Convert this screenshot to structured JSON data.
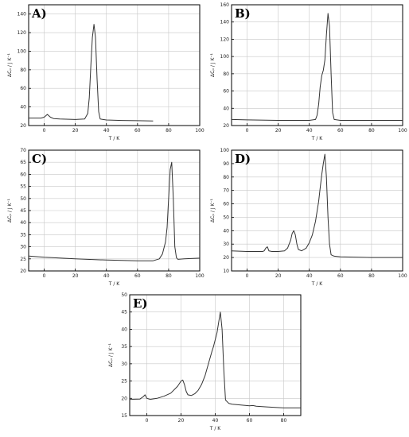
{
  "chart_data": [
    {
      "type": "line",
      "panel_label": "A)",
      "xlabel": "T / K",
      "ylabel": "ΔCₚ / J K⁻¹",
      "xlim": [
        -10,
        100
      ],
      "ylim": [
        20,
        150
      ],
      "xticks": [
        0,
        20,
        40,
        60,
        80,
        100
      ],
      "yticks": [
        20,
        40,
        60,
        80,
        100,
        120,
        140
      ],
      "grid": true,
      "series": [
        {
          "x": [
            -10,
            -2,
            0,
            2,
            4,
            6,
            10,
            20,
            26,
            28,
            29,
            30,
            31,
            32,
            33,
            34,
            35,
            36,
            40,
            50,
            60,
            70
          ],
          "y": [
            28,
            28,
            29,
            32,
            29,
            27.5,
            27,
            26.5,
            27,
            33,
            50,
            85,
            115,
            129,
            115,
            70,
            35,
            27,
            26,
            25.5,
            25.2,
            25
          ]
        }
      ]
    },
    {
      "type": "line",
      "panel_label": "B)",
      "xlabel": "T / K",
      "ylabel": "ΔCₚ / J K⁻¹",
      "xlim": [
        -10,
        100
      ],
      "ylim": [
        20,
        160
      ],
      "xticks": [
        0,
        20,
        40,
        60,
        80,
        100
      ],
      "yticks": [
        20,
        40,
        60,
        80,
        100,
        120,
        140,
        160
      ],
      "grid": true,
      "series": [
        {
          "x": [
            -10,
            0,
            20,
            40,
            44,
            45,
            46,
            47,
            48,
            49,
            50,
            51,
            52,
            53,
            54,
            55,
            56,
            60,
            80,
            100
          ],
          "y": [
            27,
            26.5,
            26,
            26,
            27,
            32,
            45,
            65,
            78,
            84,
            96,
            125,
            150,
            135,
            80,
            35,
            27,
            26,
            26,
            26
          ]
        }
      ]
    },
    {
      "type": "line",
      "panel_label": "C)",
      "xlabel": "T / K",
      "ylabel": "ΔCₚ / J K⁻¹",
      "xlim": [
        -10,
        100
      ],
      "ylim": [
        20,
        70
      ],
      "xticks": [
        0,
        20,
        40,
        60,
        80,
        100
      ],
      "yticks": [
        20,
        25,
        30,
        35,
        40,
        45,
        50,
        55,
        60,
        65,
        70
      ],
      "grid": true,
      "series": [
        {
          "x": [
            -10,
            0,
            20,
            40,
            60,
            70,
            74,
            76,
            78,
            79,
            80,
            81,
            82,
            83,
            84,
            85,
            86,
            90,
            100
          ],
          "y": [
            26.2,
            25.7,
            25,
            24.5,
            24.2,
            24.2,
            25,
            27,
            32,
            38,
            50,
            62,
            65,
            50,
            30,
            25.5,
            24.8,
            25,
            25.3
          ]
        }
      ]
    },
    {
      "type": "line",
      "panel_label": "D)",
      "xlabel": "T / K",
      "ylabel": "ΔCₚ / J K⁻¹",
      "xlim": [
        -10,
        100
      ],
      "ylim": [
        10,
        100
      ],
      "xticks": [
        0,
        20,
        40,
        60,
        80,
        100
      ],
      "yticks": [
        10,
        20,
        30,
        40,
        50,
        60,
        70,
        80,
        90,
        100
      ],
      "grid": true,
      "series": [
        {
          "x": [
            -10,
            0,
            10,
            11,
            12,
            13,
            14,
            16,
            20,
            24,
            26,
            28,
            29,
            30,
            31,
            32,
            33,
            35,
            38,
            40,
            42,
            44,
            46,
            47,
            48,
            49,
            50,
            51,
            52,
            53,
            54,
            56,
            60,
            80,
            100
          ],
          "y": [
            25,
            24.5,
            24.5,
            25,
            27,
            28,
            25,
            24.5,
            24.5,
            25,
            27,
            33,
            38,
            40,
            37,
            30,
            26,
            25,
            27,
            31,
            37,
            47,
            62,
            72,
            82,
            90,
            97,
            80,
            50,
            30,
            22,
            21,
            20.5,
            20,
            20
          ]
        }
      ]
    },
    {
      "type": "line",
      "panel_label": "E)",
      "xlabel": "T / K",
      "ylabel": "ΔCₚ / J K⁻¹",
      "xlim": [
        -10,
        90
      ],
      "ylim": [
        15,
        50
      ],
      "xticks": [
        0,
        20,
        40,
        60,
        80
      ],
      "yticks": [
        15,
        20,
        25,
        30,
        35,
        40,
        45,
        50
      ],
      "grid": true,
      "series": [
        {
          "x": [
            -10,
            -4,
            -2,
            -1,
            0,
            2,
            6,
            10,
            14,
            18,
            20,
            21,
            22,
            23,
            24,
            26,
            28,
            30,
            32,
            34,
            36,
            38,
            39,
            40,
            41,
            42,
            43,
            44,
            45,
            46,
            48,
            50,
            60,
            62,
            64,
            70,
            80,
            90
          ],
          "y": [
            19.7,
            19.8,
            20.5,
            21,
            20,
            19.7,
            20,
            20.6,
            21.5,
            23.5,
            25,
            25.3,
            24,
            22,
            21,
            20.8,
            21.3,
            22.3,
            24,
            26.5,
            30,
            33.5,
            35,
            37,
            39,
            42,
            45,
            40,
            28,
            19.5,
            18.5,
            18.3,
            17.8,
            17.9,
            17.7,
            17.5,
            17.2,
            17.2
          ]
        }
      ]
    }
  ]
}
